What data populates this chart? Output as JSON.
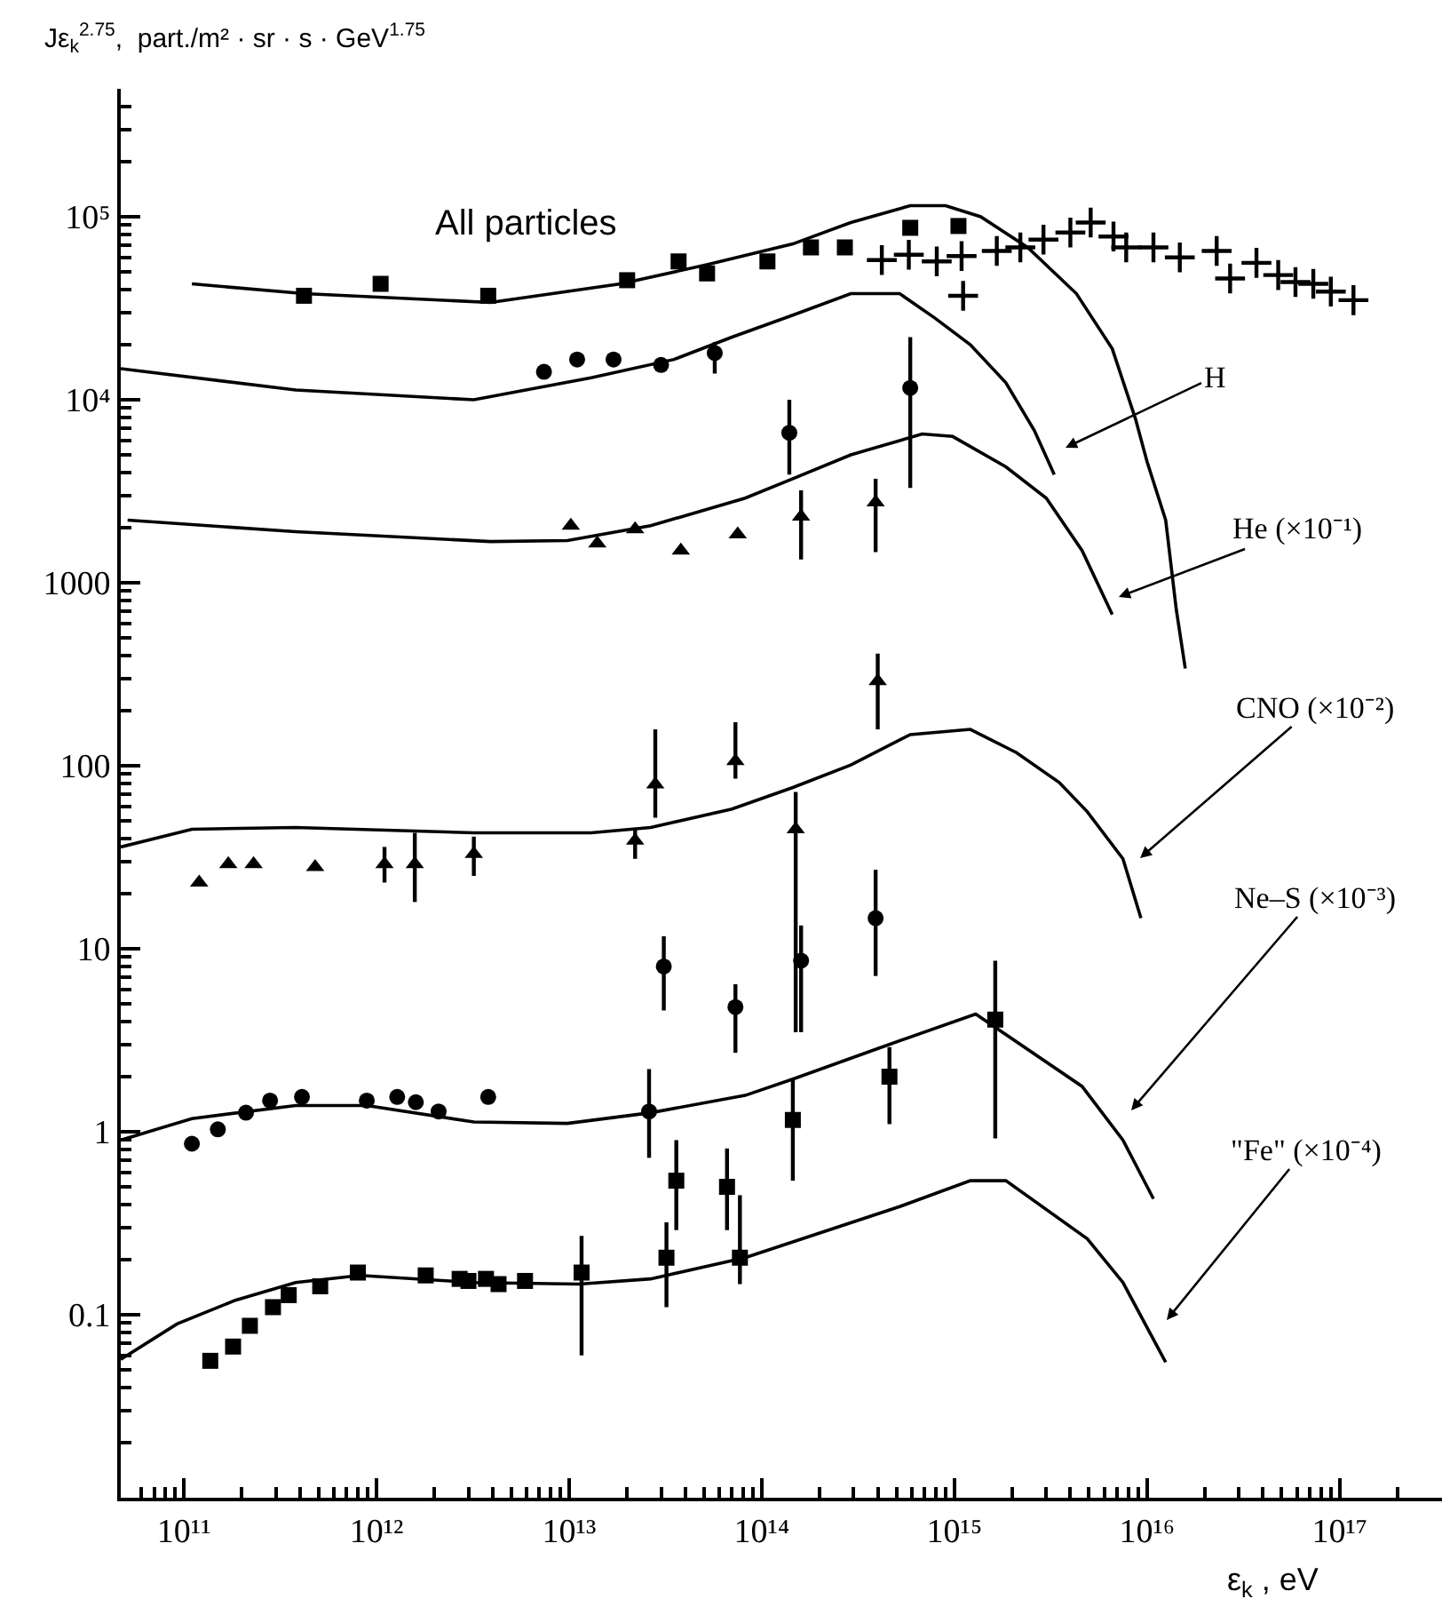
{
  "chart_data": {
    "type": "line",
    "ylabel": "Jε$_{k}$$^{2.75}$,  part./m² · sr · s · GeV$^{1.75}$",
    "xlabel": "ε$_{k}$ , eV",
    "log": "xy",
    "grid": false,
    "xlim": [
      47000000000.0,
      3.4e+17
    ],
    "ylim": [
      0.01,
      500000
    ],
    "xticks": [
      {
        "value": 60000000000.0,
        "label": null
      },
      {
        "value": 70000000000.0,
        "label": null
      },
      {
        "value": 80000000000.0,
        "label": null
      },
      {
        "value": 90000000000.0,
        "label": null
      },
      {
        "value": 100000000000.0,
        "label": "10¹¹"
      },
      {
        "value": 200000000000.0,
        "label": null
      },
      {
        "value": 300000000000.0,
        "label": null
      },
      {
        "value": 400000000000.0,
        "label": null
      },
      {
        "value": 500000000000.0,
        "label": null
      },
      {
        "value": 600000000000.0,
        "label": null
      },
      {
        "value": 700000000000.0,
        "label": null
      },
      {
        "value": 800000000000.0,
        "label": null
      },
      {
        "value": 900000000000.0,
        "label": null
      },
      {
        "value": 1000000000000.0,
        "label": "10¹²"
      },
      {
        "value": 2000000000000.0,
        "label": null
      },
      {
        "value": 3000000000000.0,
        "label": null
      },
      {
        "value": 4000000000000.0,
        "label": null
      },
      {
        "value": 5000000000000.0,
        "label": null
      },
      {
        "value": 6000000000000.0,
        "label": null
      },
      {
        "value": 7000000000000.0,
        "label": null
      },
      {
        "value": 8000000000000.0,
        "label": null
      },
      {
        "value": 9000000000000.0,
        "label": null
      },
      {
        "value": 10000000000000.0,
        "label": "10¹³"
      },
      {
        "value": 20000000000000.0,
        "label": null
      },
      {
        "value": 30000000000000.0,
        "label": null
      },
      {
        "value": 40000000000000.0,
        "label": null
      },
      {
        "value": 50000000000000.0,
        "label": null
      },
      {
        "value": 60000000000000.0,
        "label": null
      },
      {
        "value": 70000000000000.0,
        "label": null
      },
      {
        "value": 80000000000000.0,
        "label": null
      },
      {
        "value": 90000000000000.0,
        "label": null
      },
      {
        "value": 100000000000000.0,
        "label": "10¹⁴"
      },
      {
        "value": 200000000000000.0,
        "label": null
      },
      {
        "value": 300000000000000.0,
        "label": null
      },
      {
        "value": 400000000000000.0,
        "label": null
      },
      {
        "value": 500000000000000.0,
        "label": null
      },
      {
        "value": 600000000000000.0,
        "label": null
      },
      {
        "value": 700000000000000.0,
        "label": null
      },
      {
        "value": 800000000000000.0,
        "label": null
      },
      {
        "value": 900000000000000.0,
        "label": null
      },
      {
        "value": 1000000000000000.0,
        "label": "10¹⁵"
      },
      {
        "value": 2000000000000000.0,
        "label": null
      },
      {
        "value": 3000000000000000.0,
        "label": null
      },
      {
        "value": 4000000000000000.0,
        "label": null
      },
      {
        "value": 5000000000000000.0,
        "label": null
      },
      {
        "value": 6000000000000000.0,
        "label": null
      },
      {
        "value": 7000000000000000.0,
        "label": null
      },
      {
        "value": 8000000000000000.0,
        "label": null
      },
      {
        "value": 9000000000000000.0,
        "label": null
      },
      {
        "value": 1e+16,
        "label": "10¹⁶"
      },
      {
        "value": 2e+16,
        "label": null
      },
      {
        "value": 3e+16,
        "label": null
      },
      {
        "value": 4e+16,
        "label": null
      },
      {
        "value": 5e+16,
        "label": null
      },
      {
        "value": 6e+16,
        "label": null
      },
      {
        "value": 7e+16,
        "label": null
      },
      {
        "value": 8e+16,
        "label": null
      },
      {
        "value": 9e+16,
        "label": null
      },
      {
        "value": 1e+17,
        "label": "10¹⁷"
      },
      {
        "value": 2e+17,
        "label": null
      }
    ],
    "yticks": [
      {
        "value": 0.02,
        "label": null
      },
      {
        "value": 0.03,
        "label": null
      },
      {
        "value": 0.04,
        "label": null
      },
      {
        "value": 0.05,
        "label": null
      },
      {
        "value": 0.06,
        "label": null
      },
      {
        "value": 0.07,
        "label": null
      },
      {
        "value": 0.08,
        "label": null
      },
      {
        "value": 0.09,
        "label": null
      },
      0.1,
      {
        "value": 0.2,
        "label": null
      },
      {
        "value": 0.3,
        "label": null
      },
      {
        "value": 0.4,
        "label": null
      },
      {
        "value": 0.5,
        "label": null
      },
      {
        "value": 0.6,
        "label": null
      },
      {
        "value": 0.7,
        "label": null
      },
      {
        "value": 0.8,
        "label": null
      },
      {
        "value": 0.9,
        "label": null
      },
      1,
      {
        "value": 2,
        "label": null
      },
      {
        "value": 3,
        "label": null
      },
      {
        "value": 4,
        "label": null
      },
      {
        "value": 5,
        "label": null
      },
      {
        "value": 6,
        "label": null
      },
      {
        "value": 7,
        "label": null
      },
      {
        "value": 8,
        "label": null
      },
      {
        "value": 9,
        "label": null
      },
      10,
      {
        "value": 20,
        "label": null
      },
      {
        "value": 30,
        "label": null
      },
      {
        "value": 40,
        "label": null
      },
      {
        "value": 50,
        "label": null
      },
      {
        "value": 60,
        "label": null
      },
      {
        "value": 70,
        "label": null
      },
      {
        "value": 80,
        "label": null
      },
      {
        "value": 90,
        "label": null
      },
      100,
      {
        "value": 200,
        "label": null
      },
      {
        "value": 300,
        "label": null
      },
      {
        "value": 400,
        "label": null
      },
      {
        "value": 500,
        "label": null
      },
      {
        "value": 600,
        "label": null
      },
      {
        "value": 700,
        "label": null
      },
      {
        "value": 800,
        "label": null
      },
      {
        "value": 900,
        "label": null
      },
      1000,
      {
        "value": 2000,
        "label": null
      },
      {
        "value": 3000,
        "label": null
      },
      {
        "value": 4000,
        "label": null
      },
      {
        "value": 5000,
        "label": null
      },
      {
        "value": 6000,
        "label": null
      },
      {
        "value": 7000,
        "label": null
      },
      {
        "value": 8000,
        "label": null
      },
      {
        "value": 9000,
        "label": null
      },
      {
        "value": 10000,
        "label": "10⁴"
      },
      {
        "value": 20000,
        "label": null
      },
      {
        "value": 30000,
        "label": null
      },
      {
        "value": 40000,
        "label": null
      },
      {
        "value": 50000,
        "label": null
      },
      {
        "value": 60000,
        "label": null
      },
      {
        "value": 70000,
        "label": null
      },
      {
        "value": 80000,
        "label": null
      },
      {
        "value": 90000,
        "label": null
      },
      {
        "value": 100000,
        "label": "10⁵"
      },
      {
        "value": 200000,
        "label": null
      },
      {
        "value": 300000,
        "label": null
      },
      {
        "value": 400000,
        "label": null
      }
    ],
    "series": [
      {
        "color": "#000000",
        "x": [
          110000000000.0,
          420000000000.0,
          3900000000000.0,
          18500000000000.0,
          53000000000000.0,
          145000000000000.0,
          290000000000000.0,
          590000000000000.0,
          900000000000000.0,
          1370000000000000.0,
          2400000000000000.0,
          4300000000000000.0,
          6600000000000000.0,
          8700000000000000.0,
          1e+16,
          1.25e+16,
          1.42e+16,
          1.58e+16
        ],
        "values": [
          43000,
          38000,
          34000,
          43000,
          55000,
          71000,
          93000,
          115000,
          115000,
          100000,
          68000,
          38000,
          19000,
          7900,
          4600,
          2200,
          710,
          340
        ]
      },
      {
        "color": "#000000",
        "x": [
          47000000000.0,
          380000000000.0,
          3200000000000.0,
          13000000000000.0,
          35000000000000.0,
          70000000000000.0,
          145000000000000.0,
          290000000000000.0,
          520000000000000.0,
          790000000000000.0,
          1210000000000000.0,
          1850000000000000.0,
          2600000000000000.0,
          3300000000000000.0
        ],
        "values": [
          14800,
          11300,
          10000,
          13200,
          16600,
          22000,
          29000,
          38000,
          38000,
          28000,
          20000,
          12400,
          6800,
          3900
        ]
      },
      {
        "color": "#000000",
        "x": [
          51000000000.0,
          380000000000.0,
          3900000000000.0,
          9800000000000.0,
          26500000000000.0,
          82000000000000.0,
          145000000000000.0,
          290000000000000.0,
          680000000000000.0,
          980000000000000.0,
          1850000000000000.0,
          3000000000000000.0,
          4600000000000000.0,
          6600000000000000.0
        ],
        "values": [
          2200,
          1900,
          1680,
          1700,
          2050,
          2900,
          3700,
          5000,
          6500,
          6300,
          4300,
          2900,
          1500,
          670
        ]
      },
      {
        "color": "#000000",
        "x": [
          47000000000.0,
          110000000000.0,
          380000000000.0,
          3200000000000.0,
          13000000000000.0,
          26500000000000.0,
          70000000000000.0,
          145000000000000.0,
          290000000000000.0,
          590000000000000.0,
          1210000000000000.0,
          2100000000000000.0,
          3500000000000000.0,
          4900000000000000.0,
          7500000000000000.0,
          9300000000000000.0
        ],
        "values": [
          36,
          45,
          46,
          43,
          43,
          46,
          58,
          76,
          101,
          148,
          158,
          118,
          81,
          56,
          31,
          14.7
        ]
      },
      {
        "color": "#000000",
        "x": [
          47000000000.0,
          110000000000.0,
          380000000000.0,
          890000000000.0,
          3200000000000.0,
          9800000000000.0,
          26500000000000.0,
          82000000000000.0,
          145000000000000.0,
          420000000000000.0,
          1290000000000000.0,
          4600000000000000.0,
          7500000000000000.0,
          1.08e+16
        ],
        "values": [
          0.9,
          1.18,
          1.39,
          1.39,
          1.13,
          1.11,
          1.27,
          1.58,
          1.94,
          2.9,
          4.4,
          1.77,
          0.9,
          0.43
        ]
      },
      {
        "color": "#000000",
        "x": [
          47000000000.0,
          92000000000.0,
          185000000000.0,
          380000000000.0,
          820000000000.0,
          3200000000000.0,
          11300000000000.0,
          26500000000000.0,
          82000000000000.0,
          145000000000000.0,
          520000000000000.0,
          1210000000000000.0,
          1850000000000000.0,
          4900000000000000.0,
          7500000000000000.0,
          1.25e+16
        ],
        "values": [
          0.057,
          0.089,
          0.12,
          0.15,
          0.164,
          0.15,
          0.147,
          0.157,
          0.205,
          0.25,
          0.39,
          0.54,
          0.54,
          0.26,
          0.15,
          0.055
        ]
      },
      {
        "type": "scatter",
        "marker": "square",
        "color": "#000000",
        "x": [
          420000000000.0,
          1050000000000.0,
          3800000000000.0,
          20000000000000.0,
          37000000000000.0,
          52000000000000.0,
          107000000000000.0,
          180000000000000.0,
          270000000000000.0,
          590000000000000.0,
          1050000000000000.0
        ],
        "values": [
          37000,
          43000,
          37000,
          45000,
          57000,
          49000,
          57000,
          68000,
          68000,
          87000,
          89000
        ]
      },
      {
        "type": "scatter",
        "marker": "cross",
        "color": "#000000",
        "x": [
          420000000000000.0,
          580000000000000.0,
          810000000000000.0,
          1090000000000000.0,
          1110000000000000.0,
          1660000000000000.0,
          2200000000000000.0,
          2900000000000000.0,
          4000000000000000.0,
          5100000000000000.0,
          6700000000000000.0,
          7800000000000000.0,
          1.08e+16,
          1.48e+16,
          2.3e+16,
          2.7e+16,
          3.7e+16,
          4.8e+16,
          5.9e+16,
          7.3e+16,
          9e+16,
          1.18e+17
        ],
        "values": [
          58000,
          62000,
          57000,
          61000,
          37000,
          65000,
          68000,
          75000,
          82000,
          93000,
          78000,
          68000,
          68000,
          60000,
          65000,
          46000,
          56000,
          48000,
          44000,
          43000,
          39000,
          35000
        ]
      },
      {
        "type": "scatter",
        "marker": "circle",
        "color": "#000000",
        "x": [
          7400000000000.0,
          11000000000000.0,
          17000000000000.0,
          30000000000000.0,
          57000000000000.0,
          139000000000000.0,
          590000000000000.0
        ],
        "values": [
          14200,
          16600,
          16600,
          15500,
          18000,
          6600,
          11600
        ],
        "errors": [
          null,
          null,
          null,
          null,
          [
            13900,
            20700
          ],
          [
            3900,
            10000
          ],
          [
            3300,
            22000
          ]
        ]
      },
      {
        "type": "scatter",
        "marker": "triangle",
        "color": "#000000",
        "x": [
          10200000000000.0,
          14000000000000.0,
          22000000000000.0,
          38000000000000.0,
          75000000000000.0,
          160000000000000.0,
          390000000000000.0
        ],
        "values": [
          2050,
          1640,
          1960,
          1500,
          1840,
          2300,
          2750
        ],
        "errors": [
          null,
          null,
          null,
          null,
          null,
          [
            1340,
            3200
          ],
          [
            1470,
            3700
          ]
        ]
      },
      {
        "type": "scatter",
        "marker": "triangle",
        "color": "#000000",
        "x": [
          120000000000.0,
          170000000000.0,
          230000000000.0,
          480000000000.0,
          1100000000000.0,
          1580000000000.0,
          3200000000000.0,
          22000000000000.0,
          28000000000000.0,
          73000000000000.0,
          150000000000000.0,
          400000000000000.0
        ],
        "values": [
          23,
          29,
          29,
          28,
          29,
          29,
          33,
          39,
          79,
          106,
          45,
          290
        ],
        "errors": [
          null,
          null,
          null,
          null,
          [
            23,
            36
          ],
          [
            18,
            43
          ],
          [
            25,
            41
          ],
          [
            31,
            45
          ],
          [
            52,
            158
          ],
          [
            85,
            173
          ],
          [
            3.5,
            72
          ],
          [
            158,
            410
          ]
        ]
      },
      {
        "type": "scatter",
        "marker": "circle",
        "color": "#000000",
        "x": [
          110000000000.0,
          150000000000.0,
          210000000000.0,
          280000000000.0,
          410000000000.0,
          890000000000.0,
          1280000000000.0,
          1600000000000.0,
          2100000000000.0,
          3800000000000.0,
          26000000000000.0,
          31000000000000.0,
          73000000000000.0,
          160000000000000.0,
          390000000000000.0
        ],
        "values": [
          0.86,
          1.03,
          1.27,
          1.48,
          1.55,
          1.48,
          1.55,
          1.45,
          1.29,
          1.55,
          1.29,
          8.0,
          4.8,
          8.6,
          14.7
        ],
        "errors": [
          null,
          null,
          null,
          null,
          null,
          null,
          null,
          null,
          null,
          null,
          [
            0.72,
            2.2
          ],
          [
            4.6,
            11.7
          ],
          [
            2.7,
            6.4
          ],
          [
            3.5,
            13.4
          ],
          [
            7.1,
            27
          ]
        ]
      },
      {
        "type": "scatter",
        "marker": "square",
        "color": "#000000",
        "x": [
          137000000000.0,
          180000000000.0,
          220000000000.0,
          290000000000.0,
          350000000000.0,
          510000000000.0,
          800000000000.0,
          1800000000000.0,
          2700000000000.0,
          3000000000000.0,
          3700000000000.0,
          4300000000000.0,
          5900000000000.0,
          11600000000000.0,
          32000000000000.0,
          36000000000000.0,
          66000000000000.0,
          77000000000000.0,
          145000000000000.0,
          460000000000000.0,
          1630000000000000.0
        ],
        "values": [
          0.056,
          0.067,
          0.087,
          0.11,
          0.128,
          0.143,
          0.17,
          0.164,
          0.157,
          0.153,
          0.157,
          0.147,
          0.153,
          0.17,
          0.205,
          0.54,
          0.5,
          0.205,
          1.16,
          2.0,
          4.1
        ],
        "errors": [
          null,
          null,
          null,
          null,
          null,
          null,
          null,
          null,
          null,
          null,
          null,
          null,
          null,
          [
            0.06,
            0.27
          ],
          [
            0.11,
            0.32
          ],
          [
            0.29,
            0.9
          ],
          [
            0.29,
            0.81
          ],
          [
            0.147,
            0.45
          ],
          [
            0.54,
            1.94
          ],
          [
            1.1,
            2.9
          ],
          [
            0.92,
            8.6
          ]
        ]
      }
    ],
    "annotations": [
      "All particles",
      "H",
      "He (×10⁻¹)",
      "CNO (×10⁻²)",
      "Ne–S (×10⁻³)",
      "\"Fe\" (×10⁻⁴)"
    ]
  }
}
